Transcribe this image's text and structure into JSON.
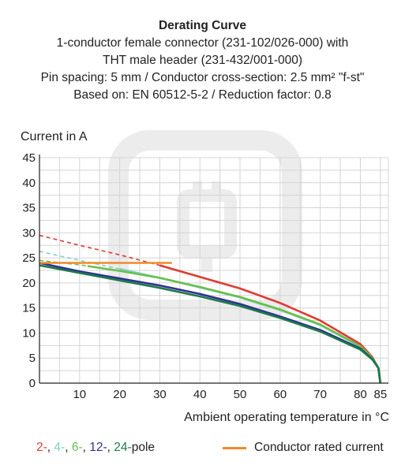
{
  "chart_data": {
    "type": "line",
    "title": "Derating Curve",
    "subtitle_lines": [
      "1-conductor female connector (231-102/026-000) with",
      "THT male header (231-432/001-000)",
      "Pin spacing: 5 mm / Conductor cross-section: 2.5 mm² \"f-st\"",
      "Based on: EN 60512-5-2 / Reduction factor: 0.8"
    ],
    "ylabel": "Current in A",
    "xlabel": "Ambient operating temperature in °C",
    "xlim": [
      0,
      87
    ],
    "ylim": [
      0,
      45
    ],
    "x_ticks": [
      10,
      20,
      30,
      40,
      50,
      60,
      70,
      80,
      85
    ],
    "y_ticks": [
      0,
      5,
      10,
      15,
      20,
      25,
      30,
      35,
      40,
      45
    ],
    "grid": true,
    "series": [
      {
        "name": "2-",
        "color": "#e03a32",
        "x": [
          0,
          10,
          20,
          30,
          40,
          50,
          60,
          70,
          80,
          83,
          84.5,
          85
        ],
        "y": [
          29.5,
          27.5,
          25.6,
          23.5,
          21.2,
          18.9,
          16.0,
          12.5,
          7.8,
          5.2,
          3.0,
          0
        ],
        "dashed_until": 30
      },
      {
        "name": "4-",
        "color": "#7fd0c8",
        "x": [
          0,
          10,
          20,
          30,
          40,
          50,
          60,
          70,
          80,
          83,
          84.5,
          85
        ],
        "y": [
          26.3,
          24.5,
          22.8,
          21.0,
          19.1,
          17.1,
          14.6,
          11.6,
          7.3,
          5.0,
          3.0,
          0
        ],
        "dashed_until": 20
      },
      {
        "name": "6-",
        "color": "#6abf4b",
        "x": [
          0,
          10,
          20,
          30,
          40,
          50,
          60,
          70,
          80,
          83,
          84.5,
          85
        ],
        "y": [
          24.5,
          23.6,
          22.4,
          21.0,
          19.2,
          17.2,
          14.7,
          11.7,
          7.4,
          5.0,
          3.0,
          0
        ],
        "dashed_until": 12
      },
      {
        "name": "12-",
        "color": "#2e3192",
        "x": [
          0,
          10,
          20,
          30,
          40,
          50,
          60,
          70,
          80,
          83,
          84.5,
          85
        ],
        "y": [
          24.0,
          22.3,
          20.9,
          19.5,
          17.8,
          15.8,
          13.3,
          10.6,
          6.9,
          4.8,
          3.0,
          0
        ],
        "dashed_until": 0
      },
      {
        "name": "24-",
        "color": "#1d7a4a",
        "x": [
          0,
          10,
          20,
          30,
          40,
          50,
          60,
          70,
          80,
          83,
          84.5,
          85
        ],
        "y": [
          23.5,
          22.0,
          20.5,
          19.0,
          17.3,
          15.4,
          13.0,
          10.3,
          6.7,
          4.7,
          3.0,
          0
        ],
        "dashed_until": 0
      },
      {
        "name": "Conductor rated current",
        "color": "#f08a2c",
        "x": [
          0,
          33
        ],
        "y": [
          24,
          24
        ],
        "dashed_until": 0
      }
    ],
    "legend_pole_suffix": "pole",
    "legend_placement": "bottom"
  },
  "colors": {
    "grid": "#d4d4d4",
    "axis": "#222222",
    "watermark": "#ececec"
  }
}
